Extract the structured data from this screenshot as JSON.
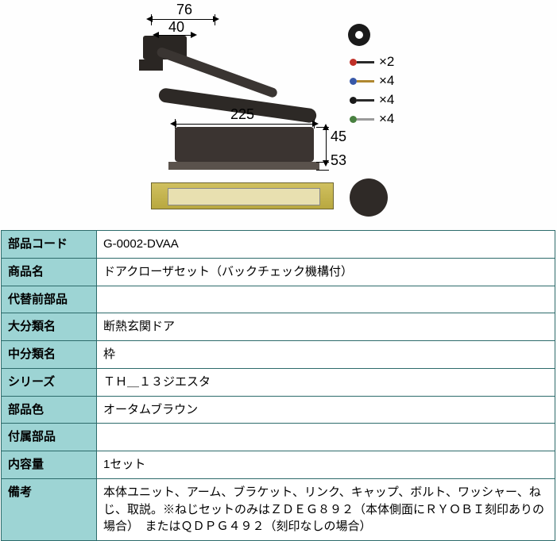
{
  "diagram": {
    "dimensions": {
      "bracket_width_outer": "76",
      "bracket_width_inner": "40",
      "body_length": "225",
      "body_height": "45",
      "body_depth": "53"
    },
    "hardware": [
      {
        "qty": "×2",
        "head_color": "#c03028",
        "shaft_color": "#2a2a2a"
      },
      {
        "qty": "×4",
        "head_color": "#3858a8",
        "shaft_color": "#b08830"
      },
      {
        "qty": "×4",
        "head_color": "#1a1a1a",
        "shaft_color": "#2a2a2a"
      },
      {
        "qty": "×4",
        "head_color": "#488040",
        "shaft_color": "#9a9a9a"
      }
    ],
    "colors": {
      "part_dark": "#3b3431",
      "plate_gold": "#c8b850",
      "background": "#ffffff"
    }
  },
  "table": {
    "header_bg": "#9dd4d4",
    "border_color": "#2d6b6b",
    "rows": [
      {
        "label": "部品コード",
        "value": "G-0002-DVAA"
      },
      {
        "label": "商品名",
        "value": "ドアクローザセット（バックチェック機構付）"
      },
      {
        "label": "代替前部品",
        "value": ""
      },
      {
        "label": "大分類名",
        "value": "断熱玄関ドア"
      },
      {
        "label": "中分類名",
        "value": "枠"
      },
      {
        "label": "シリーズ",
        "value": "ＴＨ＿１３ジエスタ"
      },
      {
        "label": "部品色",
        "value": "オータムブラウン"
      },
      {
        "label": "付属部品",
        "value": ""
      },
      {
        "label": "内容量",
        "value": "1セット"
      },
      {
        "label": "備考",
        "value": "本体ユニット、アーム、ブラケット、リンク、キャップ、ボルト、ワッシャー、ねじ、取説。※ねじセットのみはＺＤＥＧ８９２（本体側面にＲＹＯＢＩ刻印ありの場合）　またはＱＤＰＧ４９２（刻印なしの場合）"
      }
    ]
  }
}
